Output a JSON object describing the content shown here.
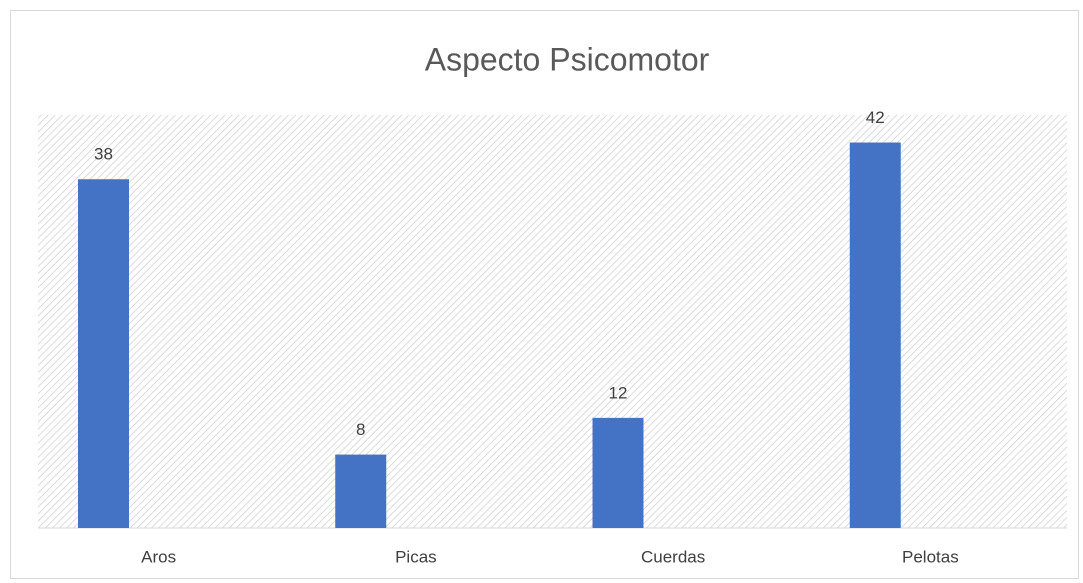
{
  "chart_data": {
    "type": "bar",
    "title": "Aspecto Psicomotor",
    "categories": [
      "Aros",
      "Picas",
      "Cuerdas",
      "Pelotas"
    ],
    "values": [
      38,
      8,
      12,
      42
    ],
    "color": "#4472c4",
    "ylim": [
      0,
      45
    ]
  }
}
